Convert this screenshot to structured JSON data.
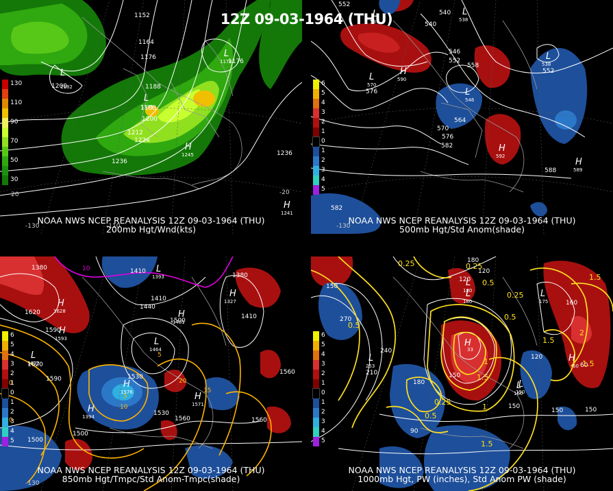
{
  "title": "12Z 09-03-1964 (THU)",
  "colors": {
    "background": "#000000",
    "contour": "#ffffff",
    "pw_contour": "#ffe020",
    "temp_contour": "#ffb400",
    "neg_temp_contour": "#e000e0",
    "pos_anom": "#a81010",
    "neg_anom": "#1e4f9a",
    "land_outline": "#9a9a9a"
  },
  "panels": [
    {
      "id": "p200",
      "caption_line1": "NOAA NWS NCEP REANALYSIS 12Z 09-03-1964 (THU)",
      "caption_line2": "200mb Hgt/Wnd(kts)",
      "legend": [
        {
          "label": "130",
          "color": "#c80000"
        },
        {
          "label": "",
          "color": "#e04010"
        },
        {
          "label": "110",
          "color": "#e08a00"
        },
        {
          "label": "",
          "color": "#f0c000"
        },
        {
          "label": "90",
          "color": "#f0f060"
        },
        {
          "label": "",
          "color": "#c8ff30"
        },
        {
          "label": "70",
          "color": "#90e020"
        },
        {
          "label": "",
          "color": "#58c818"
        },
        {
          "label": "50",
          "color": "#30a810"
        },
        {
          "label": "",
          "color": "#1e9010"
        },
        {
          "label": "30",
          "color": "#147808"
        }
      ],
      "contour_labels": [
        "1152",
        "1164",
        "1176",
        "1176",
        "1188",
        "1188",
        "1200",
        "1212",
        "1224",
        "1236",
        "1236",
        "1200"
      ],
      "centers": [
        "L",
        "L",
        "L",
        "H",
        "H"
      ],
      "center_values": [
        "1176",
        "1182",
        "1185",
        "1245",
        "1241"
      ],
      "lon_labels": [
        "-130",
        "20",
        "-110",
        "-20"
      ]
    },
    {
      "id": "p500",
      "caption_line1": "NOAA NWS NCEP REANALYSIS 12Z 09-03-1964 (THU)",
      "caption_line2": "500mb Hgt/Std Anom(shade)",
      "legend": [
        {
          "label": "6",
          "color": "#f0f000"
        },
        {
          "label": "5",
          "color": "#f0b000"
        },
        {
          "label": "4",
          "color": "#e07010"
        },
        {
          "label": "3",
          "color": "#d83030"
        },
        {
          "label": "2",
          "color": "#b01010"
        },
        {
          "label": "1",
          "color": "#800000"
        },
        {
          "label": "0",
          "color": "#000000"
        },
        {
          "label": "1",
          "color": "#1e4f9a"
        },
        {
          "label": "2",
          "color": "#2c78c8"
        },
        {
          "label": "3",
          "color": "#30b0e0"
        },
        {
          "label": "4",
          "color": "#30d0c0"
        },
        {
          "label": "5",
          "color": "#a020e0"
        }
      ],
      "contour_labels": [
        "552",
        "540",
        "540",
        "546",
        "552",
        "558",
        "564",
        "570",
        "576",
        "576",
        "582",
        "552",
        "588",
        "582"
      ],
      "centers": [
        "L",
        "L",
        "H",
        "L",
        "L",
        "H",
        "H",
        "L"
      ],
      "center_values": [
        "537",
        "570",
        "590",
        "538",
        "546",
        "592",
        "589",
        "538"
      ],
      "lon_labels": [
        "-130"
      ]
    },
    {
      "id": "p850",
      "caption_line1": "NOAA NWS NCEP REANALYSIS 12Z 09-03-1964 (THU)",
      "caption_line2": "850mb Hgt/Tmpc/Std Anom-Tmpc(shade)",
      "legend": [
        {
          "label": "6",
          "color": "#f0f000"
        },
        {
          "label": "5",
          "color": "#f0b000"
        },
        {
          "label": "4",
          "color": "#e07010"
        },
        {
          "label": "3",
          "color": "#d83030"
        },
        {
          "label": "2",
          "color": "#b01010"
        },
        {
          "label": "1",
          "color": "#800000"
        },
        {
          "label": "0",
          "color": "#000000"
        },
        {
          "label": "1",
          "color": "#1e4f9a"
        },
        {
          "label": "2",
          "color": "#2c78c8"
        },
        {
          "label": "3",
          "color": "#30b0e0"
        },
        {
          "label": "4",
          "color": "#30d0c0"
        },
        {
          "label": "5",
          "color": "#a020e0"
        }
      ],
      "contour_labels": [
        "1380",
        "1410",
        "1440",
        "1410",
        "1500",
        "1380",
        "1410",
        "1620",
        "1590",
        "1620",
        "1590",
        "1530",
        "1530",
        "1560",
        "1500",
        "1500",
        "1560",
        "1560"
      ],
      "temp_labels": [
        "-10",
        "10",
        "5",
        "5",
        "10",
        "15",
        "20",
        "10"
      ],
      "centers": [
        "H",
        "H",
        "L",
        "L",
        "H",
        "H",
        "L",
        "H",
        "H",
        "H"
      ],
      "center_values": [
        "1628",
        "1593",
        "1632",
        "1464",
        "1571",
        "1576",
        "1393",
        "1327",
        "1401",
        "1394"
      ],
      "lon_labels": [
        "-130"
      ]
    },
    {
      "id": "p1000",
      "caption_line1": "NOAA NWS NCEP REANALYSIS 12Z 09-03-1964 (THU)",
      "caption_line2": "1000mb Hgt, PW (inches), Std Anom PW (shade)",
      "legend": [
        {
          "label": "6",
          "color": "#f0f000"
        },
        {
          "label": "5",
          "color": "#f0b000"
        },
        {
          "label": "4",
          "color": "#e07010"
        },
        {
          "label": "3",
          "color": "#d83030"
        },
        {
          "label": "2",
          "color": "#b01010"
        },
        {
          "label": "1",
          "color": "#800000"
        },
        {
          "label": "0",
          "color": "#000000"
        },
        {
          "label": "1",
          "color": "#1e4f9a"
        },
        {
          "label": "2",
          "color": "#2c78c8"
        },
        {
          "label": "3",
          "color": "#30b0e0"
        },
        {
          "label": "4",
          "color": "#30d0c0"
        },
        {
          "label": "5",
          "color": "#a020e0"
        }
      ],
      "contour_labels": [
        "180",
        "120",
        "120",
        "150",
        "270",
        "240",
        "210",
        "180",
        "150",
        "120",
        "150",
        "90",
        "150",
        "150",
        "160",
        "60"
      ],
      "pw_labels": [
        "0.25",
        "0.5",
        "0.25",
        "0.5",
        "0.5",
        "0.25",
        "1",
        "1.5",
        "1.5",
        "2",
        "1.5",
        "0.5",
        "1",
        "1.5",
        "1.5",
        "0.25"
      ],
      "centers": [
        "L",
        "L",
        "L",
        "L",
        "H",
        "L",
        "L",
        "H"
      ],
      "center_values": [
        "180",
        "180",
        "175",
        "253",
        "33",
        "160",
        "150",
        "60"
      ],
      "lon_labels": []
    }
  ]
}
